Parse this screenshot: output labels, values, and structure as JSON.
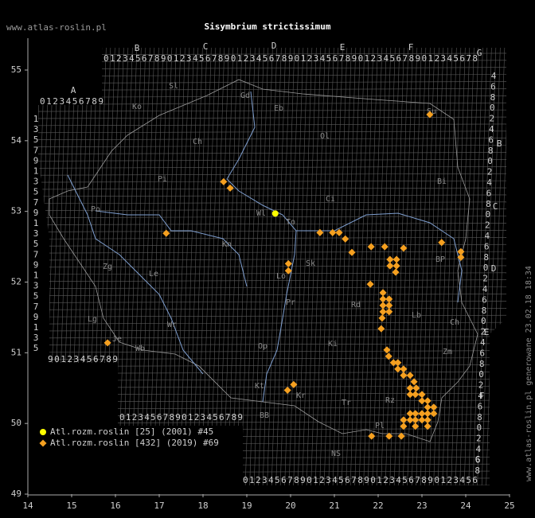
{
  "chart_data": {
    "type": "scatter",
    "title": "Sisymbrium strictissimum",
    "xlim": [
      14,
      25
    ],
    "ylim": [
      49,
      55
    ],
    "xticks": [
      14,
      15,
      16,
      17,
      18,
      19,
      20,
      21,
      22,
      23,
      24,
      25
    ],
    "yticks": [
      49,
      50,
      51,
      52,
      53,
      54,
      55
    ],
    "series": [
      {
        "name": "Atl.rozm.roslin [25] (2001) #45",
        "color": "#ffff00",
        "marker": "circle",
        "x": [
          19.65
        ],
        "y": [
          52.97
        ]
      },
      {
        "name": "Atl.rozm.roslin [432] (2019) #69",
        "color": "#f5a020",
        "marker": "diamond",
        "x": [
          23.18,
          18.47,
          18.62,
          17.16,
          20.67,
          20.96,
          21.11,
          21.25,
          21.4,
          21.84,
          22.15,
          22.58,
          23.45,
          23.89,
          23.89,
          22.27,
          22.42,
          22.27,
          22.42,
          19.95,
          19.95,
          22.4,
          21.82,
          22.11,
          22.11,
          22.25,
          22.11,
          22.25,
          22.11,
          22.25,
          22.09,
          22.07,
          22.2,
          22.24,
          22.35,
          22.45,
          22.45,
          22.58,
          22.58,
          22.73,
          22.82,
          22.73,
          22.87,
          23.0,
          22.73,
          22.85,
          23.13,
          23.0,
          23.27,
          23.13,
          23.27,
          23.13,
          23.0,
          22.85,
          22.73,
          22.58,
          22.73,
          22.85,
          23.0,
          23.13,
          22.58,
          22.85,
          22.53,
          22.25,
          21.85,
          19.93,
          20.07,
          15.82,
          23.13
        ],
        "y": [
          54.37,
          53.42,
          53.33,
          52.69,
          52.7,
          52.7,
          52.7,
          52.61,
          52.42,
          52.5,
          52.5,
          52.48,
          52.56,
          52.43,
          52.35,
          52.32,
          52.32,
          52.23,
          52.23,
          52.26,
          52.16,
          52.14,
          51.97,
          51.85,
          51.76,
          51.76,
          51.67,
          51.67,
          51.58,
          51.58,
          51.49,
          51.34,
          51.04,
          50.95,
          50.86,
          50.86,
          50.77,
          50.77,
          50.68,
          50.68,
          50.59,
          50.5,
          50.5,
          50.41,
          50.41,
          50.41,
          50.32,
          50.32,
          50.23,
          50.23,
          50.14,
          50.14,
          50.14,
          50.14,
          50.14,
          50.05,
          50.05,
          50.05,
          50.05,
          50.05,
          49.96,
          49.96,
          49.82,
          49.82,
          49.82,
          50.47,
          50.55,
          51.14,
          49.96
        ]
      }
    ]
  },
  "watermark": "www.atlas-roslin.pl",
  "generated": "www.atlas-roslin.pl generowane 23.02.18 18:34",
  "grid_letters": [
    "A",
    "B",
    "C",
    "D",
    "E",
    "F",
    "G",
    "B",
    "C",
    "D",
    "E",
    "F",
    "G"
  ],
  "grid_digits": {
    "top": "01234567890123456789012345678901234567890123456789012345678",
    "a_row": "0123456789",
    "left_bottom": "90123456789",
    "bottom_left": "01234567890123456789",
    "bottom": "0123456789012345678901234567890123456"
  },
  "left_column": [
    "1",
    "3",
    "5",
    "7",
    "9",
    "1",
    "3",
    "5",
    "7",
    "9",
    "1",
    "3",
    "5",
    "7",
    "9",
    "1",
    "3",
    "5",
    "7",
    "9",
    "1",
    "3",
    "5"
  ],
  "right_column": [
    "4",
    "6",
    "8",
    "0",
    "2",
    "4",
    "6",
    "8",
    "0",
    "2",
    "4",
    "6",
    "8",
    "0",
    "2",
    "4",
    "6",
    "8",
    "0",
    "2",
    "4",
    "6",
    "8",
    "0",
    "2",
    "4",
    "6",
    "8",
    "0",
    "2",
    "4",
    "6",
    "8",
    "0",
    "2",
    "4",
    "6",
    "8"
  ],
  "regions": [
    "Sl",
    "Ko",
    "Gd",
    "Eb",
    "Ol",
    "Ch",
    "Su",
    "Pi",
    "Ci",
    "Bi",
    "Wl",
    "To",
    "Po",
    "Kn",
    "Zg",
    "Le",
    "Sk",
    "Lo",
    "Pr",
    "Rd",
    "Lb",
    "BP",
    "Ch",
    "Wr",
    "Lg",
    "Je",
    "Wb",
    "Op",
    "Ki",
    "Zm",
    "Kt",
    "Kr",
    "Tr",
    "Rz",
    "BB",
    "NS",
    "Pl"
  ]
}
